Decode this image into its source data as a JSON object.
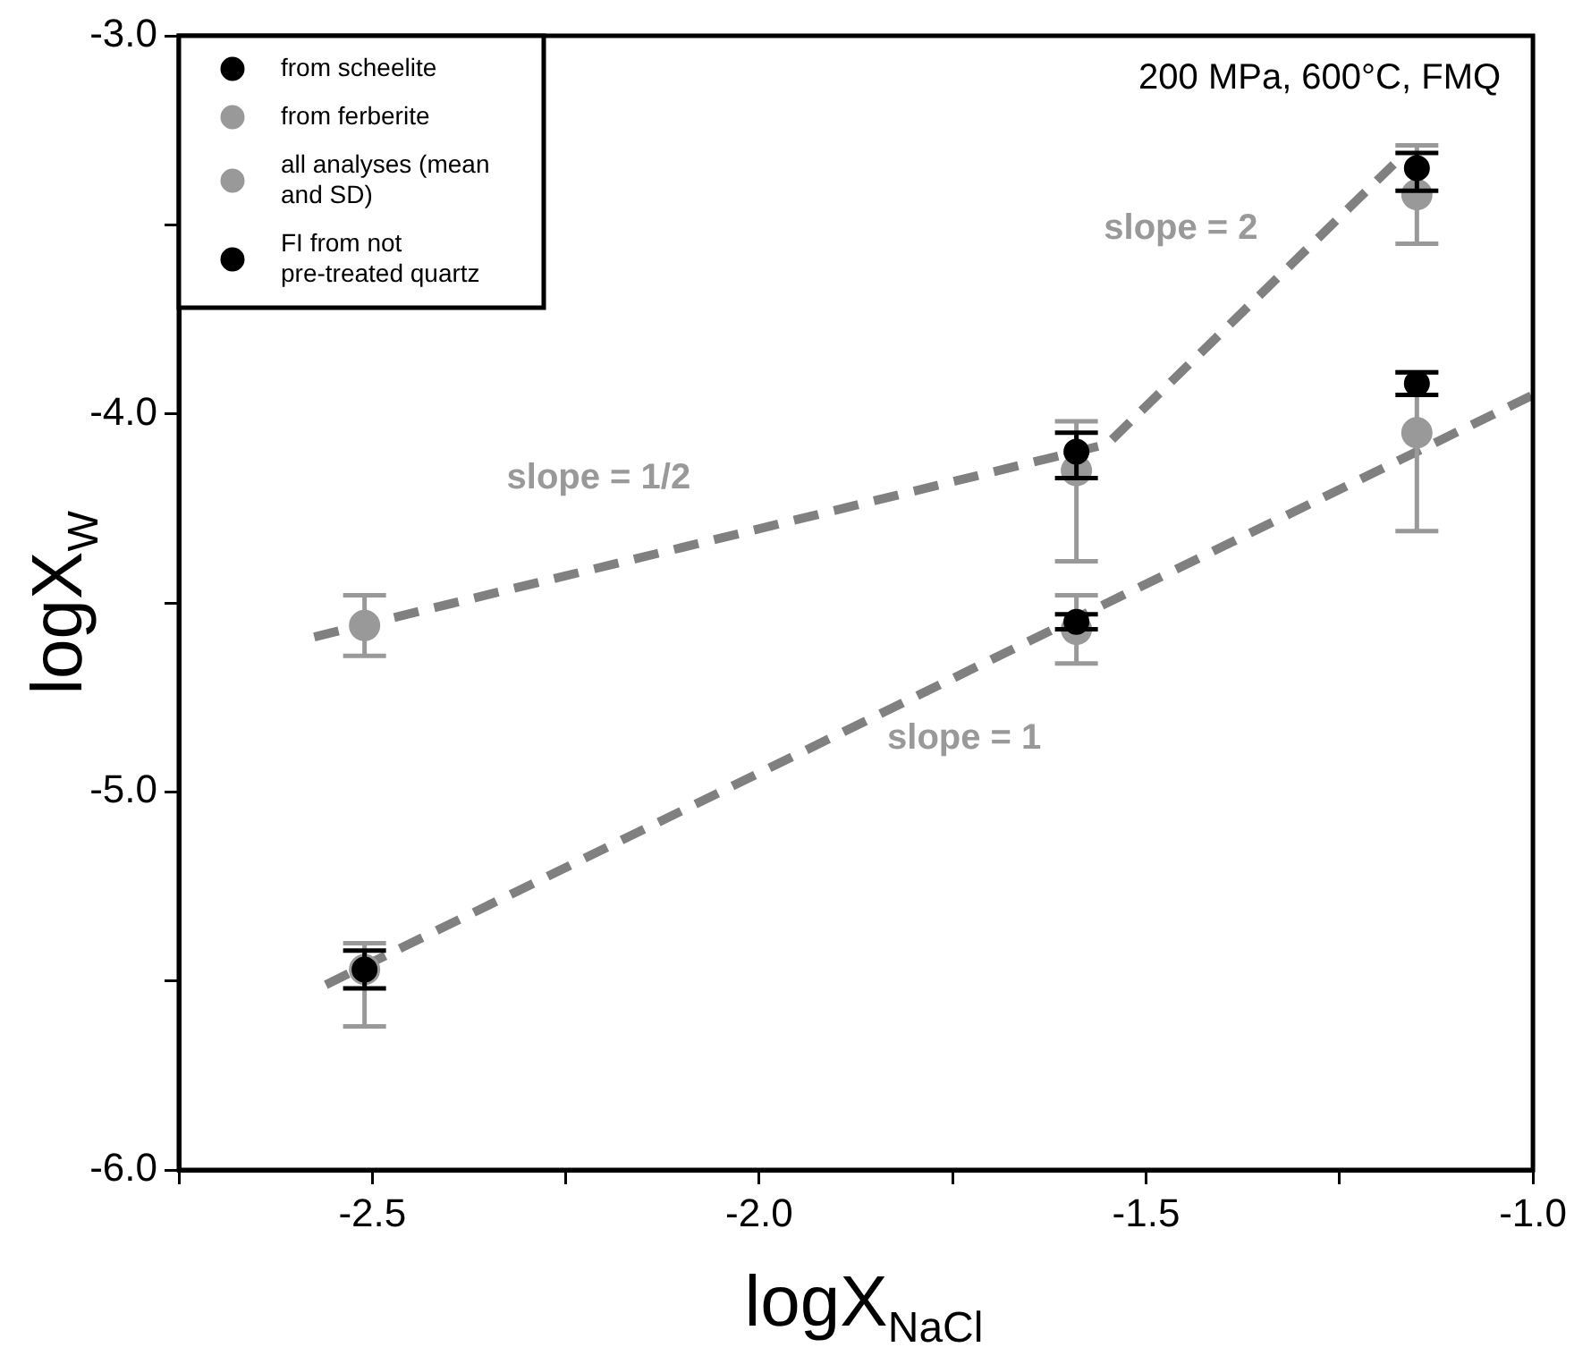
{
  "chart_data": {
    "type": "scatter",
    "xlabel": "logX$_{NaCl}$",
    "ylabel": "logX$_{W}$",
    "xlim": [
      -2.75,
      -1.0
    ],
    "xticks": [
      {
        "value": -2.75,
        "label": null
      },
      {
        "value": -2.5,
        "label": "-2.5"
      },
      {
        "value": -2.25,
        "label": null
      },
      {
        "value": -2.0,
        "label": "-2.0"
      },
      {
        "value": -1.75,
        "label": null
      },
      {
        "value": -1.5,
        "label": "-1.5"
      },
      {
        "value": -1.25,
        "label": null
      },
      {
        "value": -1.0,
        "label": "-1.0"
      }
    ],
    "ylim": [
      -6.0,
      -3.0
    ],
    "yticks": [
      {
        "value": -6.0,
        "label": "-6.0"
      },
      {
        "value": -5.5,
        "label": null
      },
      {
        "value": -5.0,
        "label": "-5.0"
      },
      {
        "value": -4.5,
        "label": null
      },
      {
        "value": -4.0,
        "label": "-4.0"
      },
      {
        "value": -3.5,
        "label": null
      },
      {
        "value": -3.0,
        "label": "-3.0"
      }
    ],
    "grid": false,
    "legend": "top left",
    "marker": "circle",
    "series": [
      {
        "name": "from scheelite",
        "color": "#000000",
        "x": [
          -2.51,
          -1.59,
          -1.15
        ],
        "values": [
          -5.47,
          -4.55,
          -3.92
        ],
        "errors": [
          [
            -5.52,
            -5.42
          ],
          0.02,
          0.03
        ]
      },
      {
        "name": "from ferberite",
        "color": "#999999",
        "x": [
          -2.51,
          -1.59,
          -1.15
        ],
        "values": [
          -4.56,
          -4.15,
          -3.42
        ],
        "errors": [
          0.08,
          [
            -4.39,
            -4.02
          ],
          [
            -3.55,
            -3.29
          ]
        ]
      },
      {
        "name": "all analyses (mean and SD)",
        "color": "#999999",
        "x": [
          -2.51,
          -1.59,
          -1.15
        ],
        "values": [
          -5.47,
          -4.57,
          -4.05
        ],
        "errors": [
          [
            -5.62,
            -5.4
          ],
          [
            -4.66,
            -4.48
          ],
          [
            -4.31,
            -3.89
          ]
        ]
      },
      {
        "name": "FI from not pre-treated quartz",
        "color": "#000000",
        "x": [
          -1.59,
          -1.15
        ],
        "values": [
          -4.1,
          -3.35
        ],
        "errors": [
          [
            -4.17,
            -4.05
          ],
          [
            -3.41,
            -3.31
          ]
        ]
      },
      {
        "type": "line",
        "color": "#808080",
        "line_style": "dashed",
        "marker": "none",
        "x": [
          -2.56,
          -1.0
        ],
        "values": [
          -5.51,
          -3.95
        ]
      },
      {
        "type": "line",
        "color": "#808080",
        "line_style": "dashed",
        "marker": "none",
        "x": [
          -2.575,
          -1.55,
          -1.18
        ],
        "values": [
          -4.59,
          -4.08,
          -3.34
        ]
      }
    ],
    "annotations": [
      "slope = 1/2",
      "slope = 2",
      "slope = 1",
      "200 MPa, 600°C, FMQ"
    ]
  }
}
